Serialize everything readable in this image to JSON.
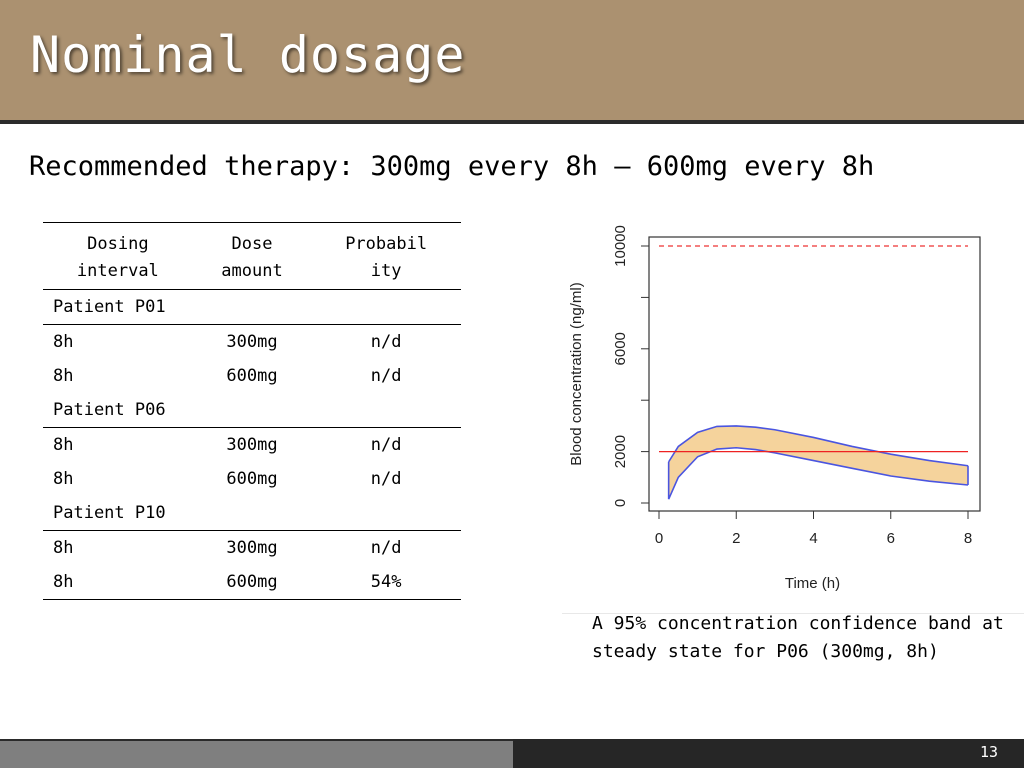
{
  "slide": {
    "title": "Nominal dosage",
    "subtitle": "Recommended therapy: 300mg every 8h – 600mg every 8h",
    "page_number": "13",
    "caption": "A 95% concentration confidence band at steady state for P06 (300mg, 8h)"
  },
  "table": {
    "headers": {
      "interval_line1": "Dosing",
      "interval_line2": "interval",
      "amount_line1": "Dose",
      "amount_line2": "amount",
      "probability_line1": "Probabil",
      "probability_line2": "ity"
    },
    "groups": [
      {
        "patient": "Patient P01",
        "rows": [
          {
            "interval": "8h",
            "amount": "300mg",
            "probability": "n/d"
          },
          {
            "interval": "8h",
            "amount": "600mg",
            "probability": "n/d"
          }
        ]
      },
      {
        "patient": "Patient P06",
        "rows": [
          {
            "interval": "8h",
            "amount": "300mg",
            "probability": "n/d"
          },
          {
            "interval": "8h",
            "amount": "600mg",
            "probability": "n/d"
          }
        ]
      },
      {
        "patient": "Patient P10",
        "rows": [
          {
            "interval": "8h",
            "amount": "300mg",
            "probability": "n/d"
          },
          {
            "interval": "8h",
            "amount": "600mg",
            "probability": "54%"
          }
        ]
      }
    ]
  },
  "chart_data": {
    "type": "area",
    "title": "",
    "xlabel": "Time (h)",
    "ylabel": "Blood concentration (ng/ml)",
    "xlim": [
      0,
      8
    ],
    "ylim": [
      0,
      10000
    ],
    "x_ticks": [
      "0",
      "2",
      "4",
      "6",
      "8"
    ],
    "y_ticks": [
      "0",
      "2000",
      "6000",
      "10000"
    ],
    "y_tick_marks": [
      0,
      2000,
      4000,
      6000,
      8000,
      10000
    ],
    "grid": false,
    "band": {
      "x": [
        0.25,
        0.5,
        1,
        1.5,
        2,
        2.5,
        3,
        4,
        5,
        6,
        7,
        8
      ],
      "upper": [
        1600,
        2200,
        2750,
        2980,
        3000,
        2950,
        2850,
        2550,
        2200,
        1900,
        1650,
        1450
      ],
      "lower": [
        150,
        1000,
        1800,
        2100,
        2150,
        2080,
        1950,
        1650,
        1350,
        1050,
        850,
        700
      ],
      "fill_color": "#f5d39c",
      "line_color": "#4a55e0"
    },
    "reference_lines": [
      {
        "y": 10000,
        "color": "#ee3333",
        "style": "dashed"
      },
      {
        "y": 2000,
        "color": "#ee2222",
        "style": "solid"
      }
    ]
  },
  "colors": {
    "header_bg": "#ab9170",
    "footer_left": "#7f7f7f",
    "footer_right": "#262626"
  }
}
